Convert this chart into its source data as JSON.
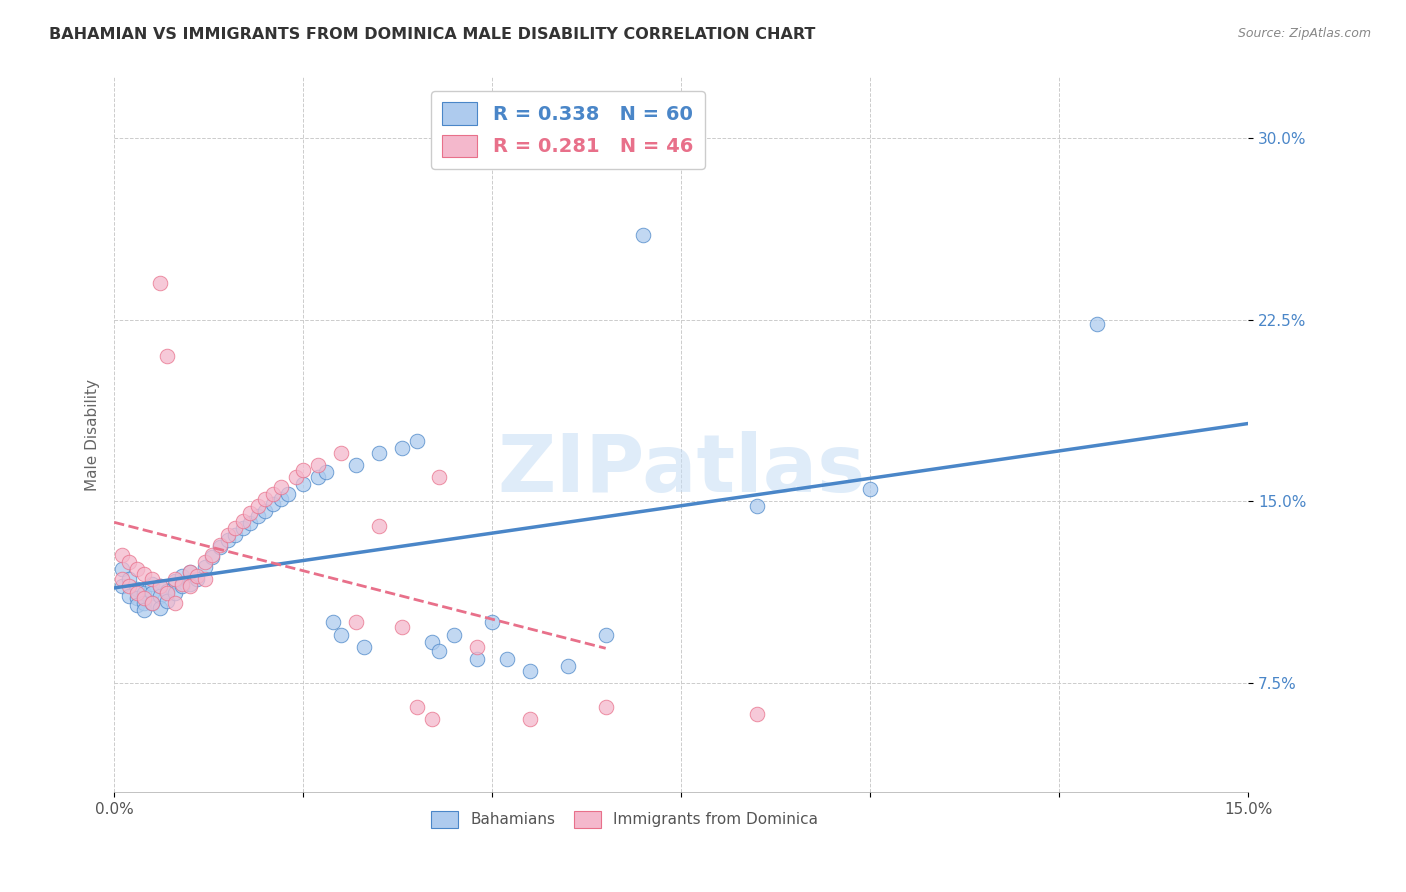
{
  "title": "BAHAMIAN VS IMMIGRANTS FROM DOMINICA MALE DISABILITY CORRELATION CHART",
  "source": "Source: ZipAtlas.com",
  "ylabel": "Male Disability",
  "ytick_vals": [
    0.075,
    0.15,
    0.225,
    0.3
  ],
  "xlim": [
    0.0,
    0.15
  ],
  "ylim": [
    0.03,
    0.325
  ],
  "bahamian_color": "#aecbee",
  "dominica_color": "#f4b8cc",
  "bahamian_line_color": "#4a86c8",
  "dominica_line_color": "#e8708a",
  "R_bahamian": 0.338,
  "N_bahamian": 60,
  "R_dominica": 0.281,
  "N_dominica": 46,
  "bahamian_x": [
    0.001,
    0.001,
    0.002,
    0.002,
    0.003,
    0.003,
    0.003,
    0.004,
    0.004,
    0.004,
    0.005,
    0.005,
    0.005,
    0.006,
    0.006,
    0.006,
    0.007,
    0.007,
    0.008,
    0.008,
    0.009,
    0.009,
    0.01,
    0.01,
    0.011,
    0.012,
    0.013,
    0.014,
    0.015,
    0.016,
    0.017,
    0.018,
    0.019,
    0.02,
    0.021,
    0.022,
    0.023,
    0.025,
    0.027,
    0.028,
    0.029,
    0.03,
    0.032,
    0.033,
    0.035,
    0.038,
    0.04,
    0.042,
    0.043,
    0.045,
    0.048,
    0.05,
    0.052,
    0.055,
    0.06,
    0.065,
    0.07,
    0.085,
    0.1,
    0.13
  ],
  "bahamian_y": [
    0.122,
    0.115,
    0.118,
    0.111,
    0.114,
    0.11,
    0.107,
    0.112,
    0.108,
    0.105,
    0.116,
    0.112,
    0.108,
    0.115,
    0.111,
    0.106,
    0.113,
    0.109,
    0.117,
    0.112,
    0.119,
    0.115,
    0.121,
    0.116,
    0.118,
    0.123,
    0.127,
    0.131,
    0.134,
    0.136,
    0.139,
    0.141,
    0.144,
    0.146,
    0.149,
    0.151,
    0.153,
    0.157,
    0.16,
    0.162,
    0.1,
    0.095,
    0.165,
    0.09,
    0.17,
    0.172,
    0.175,
    0.092,
    0.088,
    0.095,
    0.085,
    0.1,
    0.085,
    0.08,
    0.082,
    0.095,
    0.26,
    0.148,
    0.155,
    0.223
  ],
  "dominica_x": [
    0.001,
    0.001,
    0.002,
    0.002,
    0.003,
    0.003,
    0.004,
    0.004,
    0.005,
    0.005,
    0.006,
    0.006,
    0.007,
    0.007,
    0.008,
    0.008,
    0.009,
    0.01,
    0.01,
    0.011,
    0.012,
    0.012,
    0.013,
    0.014,
    0.015,
    0.016,
    0.017,
    0.018,
    0.019,
    0.02,
    0.021,
    0.022,
    0.024,
    0.025,
    0.027,
    0.03,
    0.032,
    0.035,
    0.038,
    0.04,
    0.042,
    0.043,
    0.048,
    0.055,
    0.065,
    0.085
  ],
  "dominica_y": [
    0.128,
    0.118,
    0.125,
    0.115,
    0.122,
    0.112,
    0.12,
    0.11,
    0.118,
    0.108,
    0.24,
    0.115,
    0.21,
    0.112,
    0.118,
    0.108,
    0.116,
    0.121,
    0.115,
    0.119,
    0.125,
    0.118,
    0.128,
    0.132,
    0.136,
    0.139,
    0.142,
    0.145,
    0.148,
    0.151,
    0.153,
    0.156,
    0.16,
    0.163,
    0.165,
    0.17,
    0.1,
    0.14,
    0.098,
    0.065,
    0.06,
    0.16,
    0.09,
    0.06,
    0.065,
    0.062
  ]
}
